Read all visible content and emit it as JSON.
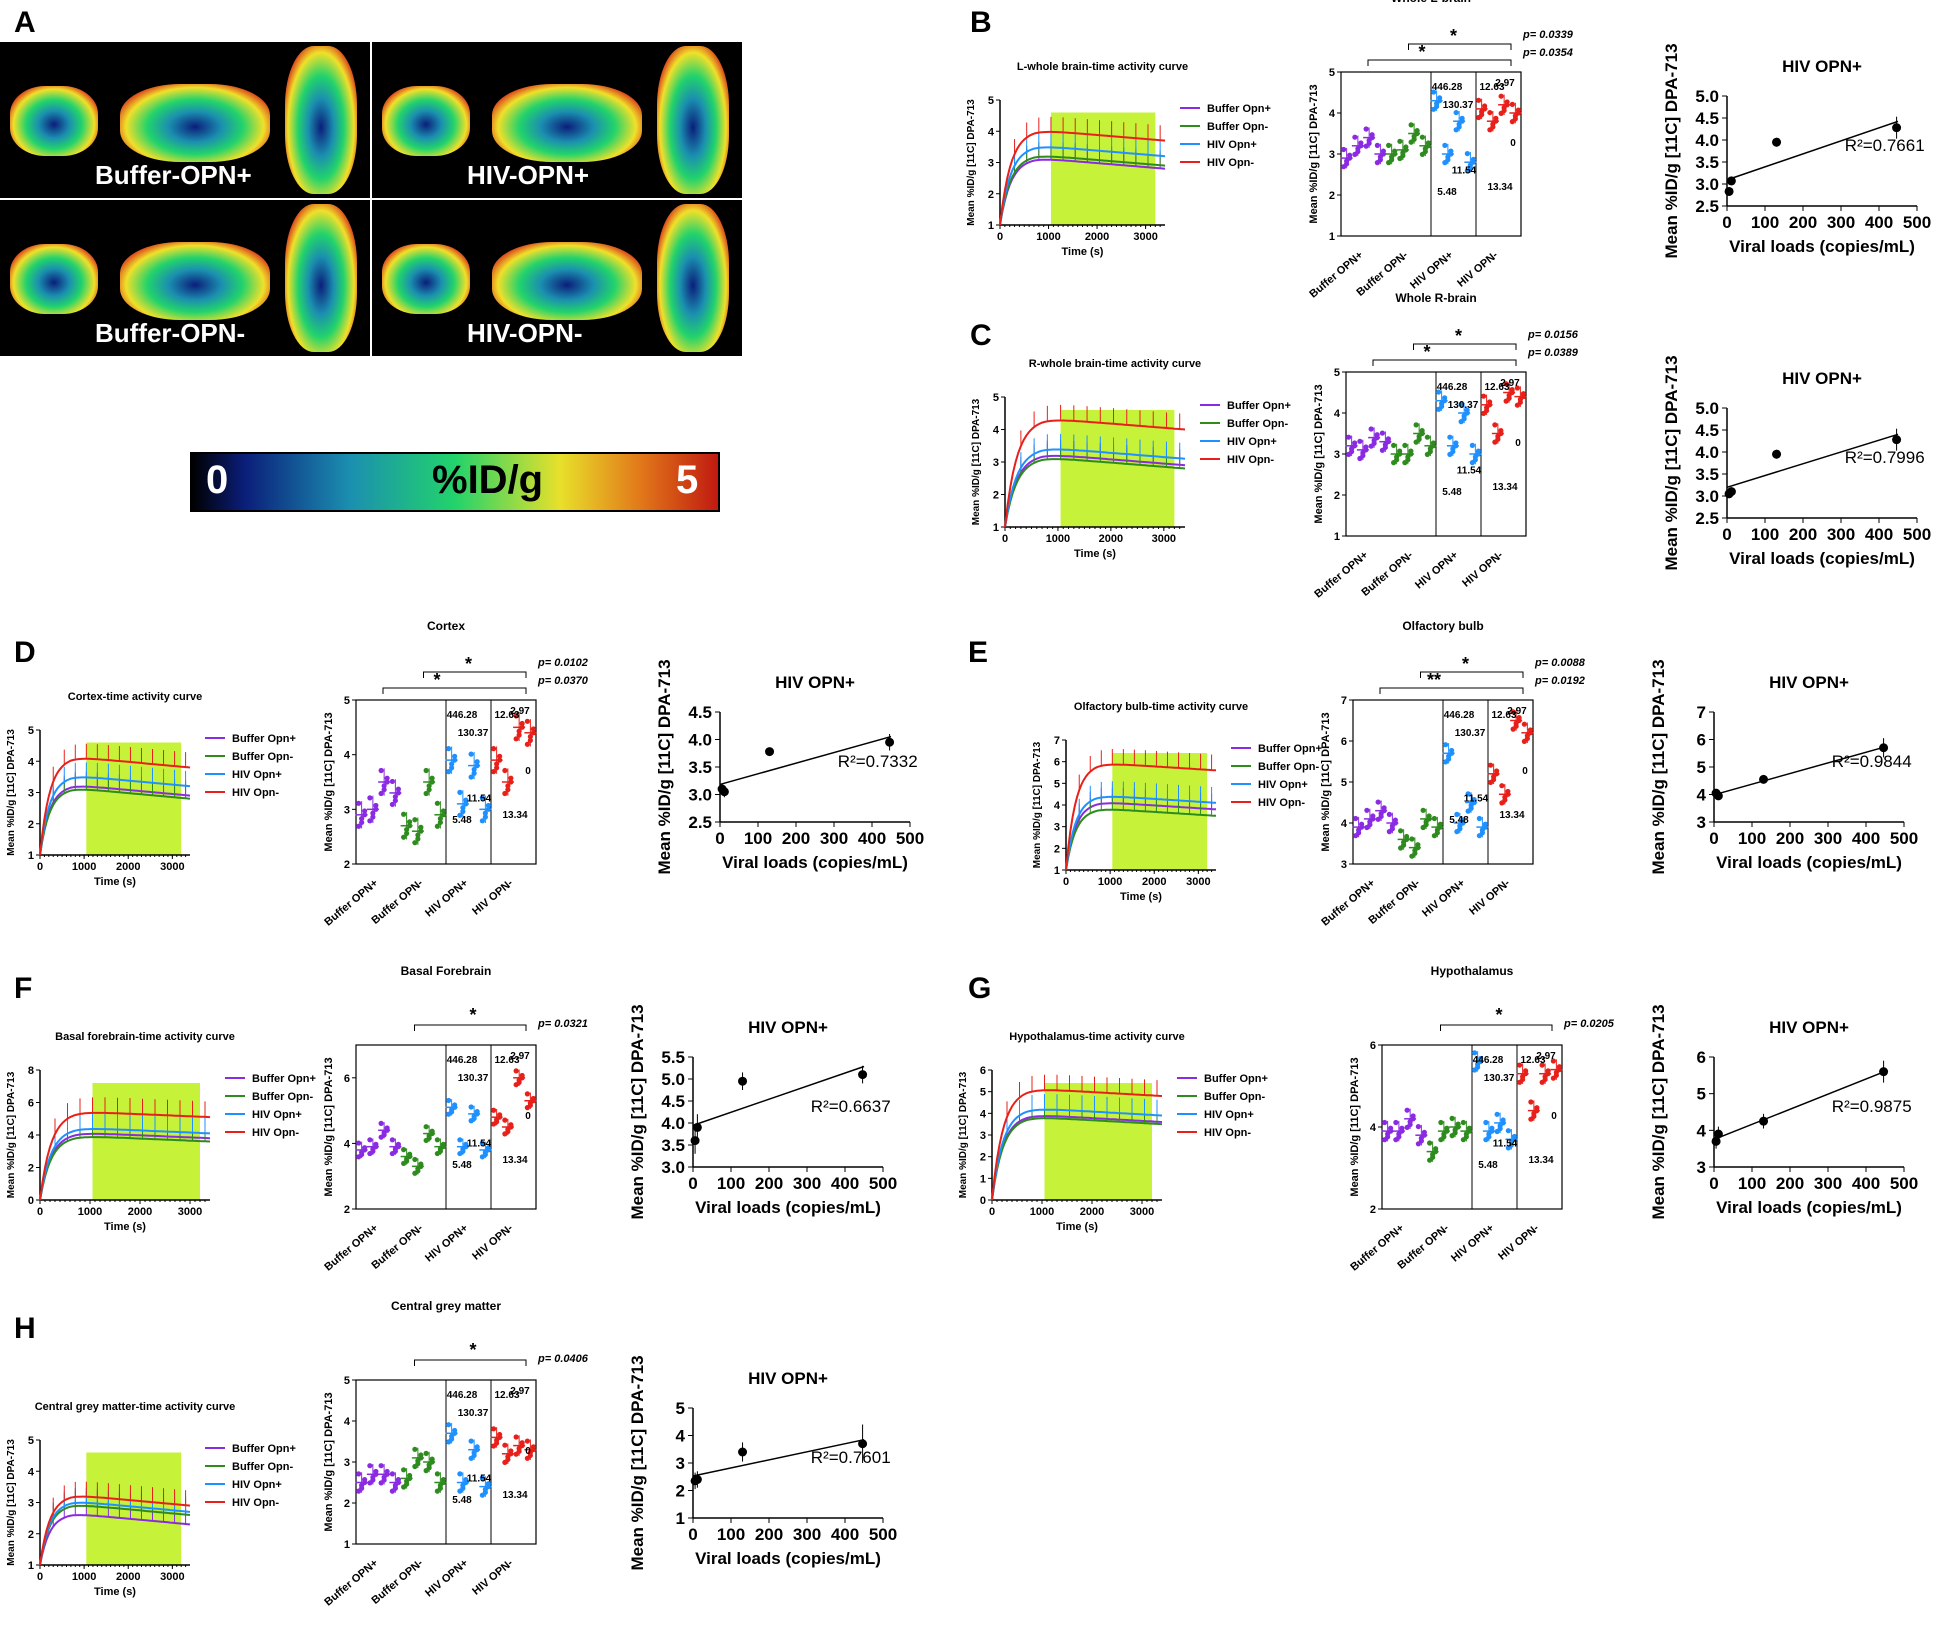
{
  "panel_letters": [
    "A",
    "B",
    "C",
    "D",
    "E",
    "F",
    "G",
    "H"
  ],
  "petscan": {
    "groups": [
      "Buffer-OPN+",
      "HIV-OPN+",
      "Buffer-OPN-",
      "HIV-OPN-"
    ],
    "colorbar": {
      "min_label": "0",
      "unit": "%ID/g",
      "max_label": "5"
    },
    "colors": {
      "low": "#0b1e7a",
      "mid": "#22d36b",
      "high": "#d62a1a"
    }
  },
  "legend_labels": [
    "Buffer Opn+",
    "Buffer Opn-",
    "HIV Opn+",
    "HIV Opn-"
  ],
  "group_labels": [
    "Buffer OPN+",
    "Buffer OPN-",
    "HIV OPN+",
    "HIV OPN-"
  ],
  "series_colors": {
    "Buffer Opn+": "#8a2be2",
    "Buffer Opn-": "#2e8b1e",
    "HIV Opn+": "#1e90ff",
    "HIV Opn-": "#e8201a",
    "highlight": "#c7f23a"
  },
  "ylabel_tac": "Mean %ID/g [11C] DPA-713",
  "ylabel_scatter": "Mean %ID/g [11C] DPA-713",
  "ylabel_reg": "Mean %ID/g [11C] DPA-713",
  "xlabel_tac": "Time (s)",
  "xlabel_reg": "Viral loads (copies/mL)",
  "reg_title": "HIV OPN+",
  "viral_loads_hiv_opn_plus": [
    "446.28",
    "130.37",
    "11.54",
    "5.48"
  ],
  "viral_loads_hiv_opn_minus": [
    "12.63",
    "2.97",
    "0",
    "13.34"
  ],
  "chart_data": [
    {
      "panel": "B",
      "region": "Whole L-brain",
      "tac_title": "L-whole brain-time activity curve",
      "tac": {
        "type": "line",
        "x_ticks": [
          0,
          1000,
          2000,
          3000
        ],
        "ylim": [
          1,
          5
        ],
        "y_ticks": [
          1,
          2,
          3,
          4,
          5
        ],
        "series": [
          {
            "name": "Buffer Opn+",
            "plateau": 2.9
          },
          {
            "name": "Buffer Opn-",
            "plateau": 3.0
          },
          {
            "name": "HIV Opn+",
            "plateau": 3.3
          },
          {
            "name": "HIV Opn-",
            "plateau": 3.8
          }
        ]
      },
      "scatter": {
        "type": "scatter",
        "ylim": [
          1,
          5
        ],
        "y_ticks": [
          1,
          2,
          3,
          4,
          5
        ],
        "means": [
          [
            2.9,
            3.2,
            3.4,
            3.0
          ],
          [
            3.0,
            3.1,
            3.5,
            3.2
          ],
          [
            4.3,
            3.0,
            3.8,
            2.8
          ],
          [
            4.1,
            3.8,
            4.2,
            4.0
          ]
        ],
        "stars": [
          "*",
          "*"
        ],
        "p_values": [
          "p= 0.0339",
          "p= 0.0354"
        ]
      },
      "regression": {
        "type": "scatter",
        "x": [
          446.28,
          130.37,
          11.54,
          5.48
        ],
        "y": [
          4.28,
          3.95,
          3.07,
          2.83
        ],
        "err": [
          0.25,
          0.1,
          0.1,
          0.1
        ],
        "xlim": [
          0,
          500
        ],
        "ylim": [
          2.5,
          5.0
        ],
        "y_ticks": [
          2.5,
          3.0,
          3.5,
          4.0,
          4.5,
          5.0
        ],
        "r2": "R²=0.7661"
      }
    },
    {
      "panel": "C",
      "region": "Whole R-brain",
      "tac_title": "R-whole brain-time activity curve",
      "tac": {
        "type": "line",
        "x_ticks": [
          0,
          1000,
          2000,
          3000
        ],
        "ylim": [
          1,
          5
        ],
        "y_ticks": [
          1,
          2,
          3,
          4,
          5
        ],
        "series": [
          {
            "name": "Buffer Opn+",
            "plateau": 3.0
          },
          {
            "name": "Buffer Opn-",
            "plateau": 2.9
          },
          {
            "name": "HIV Opn+",
            "plateau": 3.2
          },
          {
            "name": "HIV Opn-",
            "plateau": 4.1
          }
        ]
      },
      "scatter": {
        "type": "scatter",
        "ylim": [
          1,
          5
        ],
        "y_ticks": [
          1,
          2,
          3,
          4,
          5
        ],
        "means": [
          [
            3.2,
            3.1,
            3.4,
            3.3
          ],
          [
            3.0,
            3.0,
            3.5,
            3.2
          ],
          [
            4.3,
            3.2,
            4.0,
            3.0
          ],
          [
            4.2,
            3.5,
            4.5,
            4.4
          ]
        ],
        "stars": [
          "*",
          "*"
        ],
        "p_values": [
          "p= 0.0156",
          "p= 0.0389"
        ]
      },
      "regression": {
        "type": "scatter",
        "x": [
          446.28,
          130.37,
          11.54,
          5.48
        ],
        "y": [
          4.28,
          3.95,
          3.1,
          3.05
        ],
        "err": [
          0.25,
          0.1,
          0.1,
          0.1
        ],
        "xlim": [
          0,
          500
        ],
        "ylim": [
          2.5,
          5.0
        ],
        "y_ticks": [
          2.5,
          3.0,
          3.5,
          4.0,
          4.5,
          5.0
        ],
        "r2": "R²=0.7996"
      }
    },
    {
      "panel": "D",
      "region": "Cortex",
      "tac_title": "Cortex-time activity curve",
      "tac": {
        "type": "line",
        "x_ticks": [
          0,
          1000,
          2000,
          3000
        ],
        "ylim": [
          1,
          5
        ],
        "y_ticks": [
          1,
          2,
          3,
          4,
          5
        ],
        "series": [
          {
            "name": "Buffer Opn+",
            "plateau": 3.0
          },
          {
            "name": "Buffer Opn-",
            "plateau": 2.9
          },
          {
            "name": "HIV Opn+",
            "plateau": 3.3
          },
          {
            "name": "HIV Opn-",
            "plateau": 3.9
          }
        ]
      },
      "scatter": {
        "type": "scatter",
        "ylim": [
          2,
          5
        ],
        "y_ticks": [
          2,
          3,
          4,
          5
        ],
        "means": [
          [
            2.9,
            3.0,
            3.5,
            3.3
          ],
          [
            2.7,
            2.6,
            3.5,
            2.9
          ],
          [
            3.9,
            3.1,
            3.8,
            3.0
          ],
          [
            3.9,
            3.5,
            4.5,
            4.4
          ]
        ],
        "stars": [
          "*",
          "*"
        ],
        "p_values": [
          "p= 0.0102",
          "p= 0.0370"
        ]
      },
      "regression": {
        "type": "scatter",
        "x": [
          446.28,
          130.37,
          11.54,
          5.48
        ],
        "y": [
          3.95,
          3.78,
          3.05,
          3.1
        ],
        "err": [
          0.15,
          0.05,
          0.1,
          0.1
        ],
        "xlim": [
          0,
          500
        ],
        "ylim": [
          2.5,
          4.5
        ],
        "y_ticks": [
          2.5,
          3.0,
          3.5,
          4.0,
          4.5
        ],
        "r2": "R²=0.7332"
      }
    },
    {
      "panel": "E",
      "region": "Olfactory bulb",
      "tac_title": "Olfactory bulb-time activity curve",
      "tac": {
        "type": "line",
        "x_ticks": [
          0,
          1000,
          2000,
          3000
        ],
        "ylim": [
          1,
          7
        ],
        "y_ticks": [
          1,
          2,
          3,
          4,
          5,
          6,
          7
        ],
        "series": [
          {
            "name": "Buffer Opn+",
            "plateau": 3.9
          },
          {
            "name": "Buffer Opn-",
            "plateau": 3.6
          },
          {
            "name": "HIV Opn+",
            "plateau": 4.2
          },
          {
            "name": "HIV Opn-",
            "plateau": 5.7
          }
        ]
      },
      "scatter": {
        "type": "scatter",
        "ylim": [
          3,
          7
        ],
        "y_ticks": [
          3,
          4,
          5,
          6,
          7
        ],
        "means": [
          [
            3.9,
            4.1,
            4.3,
            4.0
          ],
          [
            3.6,
            3.4,
            4.1,
            3.9
          ],
          [
            5.7,
            4.0,
            4.5,
            3.9
          ],
          [
            5.2,
            4.7,
            6.5,
            6.2
          ]
        ],
        "stars": [
          "**",
          "*"
        ],
        "p_values": [
          "p= 0.0088",
          "p= 0.0192"
        ]
      },
      "regression": {
        "type": "scatter",
        "x": [
          446.28,
          130.37,
          11.54,
          5.48
        ],
        "y": [
          5.7,
          4.55,
          3.95,
          4.05
        ],
        "err": [
          0.35,
          0.1,
          0.15,
          0.15
        ],
        "xlim": [
          0,
          500
        ],
        "ylim": [
          3,
          7
        ],
        "y_ticks": [
          3,
          4,
          5,
          6,
          7
        ],
        "r2": "R²=0.9844"
      }
    },
    {
      "panel": "F",
      "region": "Basal Forebrain",
      "tac_title": "Basal forebrain-time activity curve",
      "tac": {
        "type": "line",
        "x_ticks": [
          0,
          1000,
          2000,
          3000
        ],
        "ylim": [
          0,
          8
        ],
        "y_ticks": [
          0,
          2,
          4,
          6,
          8
        ],
        "series": [
          {
            "name": "Buffer Opn+",
            "plateau": 3.9
          },
          {
            "name": "Buffer Opn-",
            "plateau": 3.7
          },
          {
            "name": "HIV Opn+",
            "plateau": 4.2
          },
          {
            "name": "HIV Opn-",
            "plateau": 5.2
          }
        ]
      },
      "scatter": {
        "type": "scatter",
        "ylim": [
          2,
          7
        ],
        "y_ticks": [
          2,
          4,
          6
        ],
        "means": [
          [
            3.8,
            3.9,
            4.4,
            3.9
          ],
          [
            3.6,
            3.3,
            4.3,
            3.9
          ],
          [
            5.1,
            3.9,
            4.9,
            3.8
          ],
          [
            4.8,
            4.5,
            6.0,
            5.3
          ]
        ],
        "stars": [
          "*"
        ],
        "p_values": [
          "p= 0.0321"
        ]
      },
      "regression": {
        "type": "scatter",
        "x": [
          446.28,
          130.37,
          11.54,
          5.48
        ],
        "y": [
          5.1,
          4.95,
          3.9,
          3.6
        ],
        "err": [
          0.2,
          0.2,
          0.3,
          0.3
        ],
        "xlim": [
          0,
          500
        ],
        "ylim": [
          3.0,
          5.5
        ],
        "y_ticks": [
          3.0,
          3.5,
          4.0,
          4.5,
          5.0,
          5.5
        ],
        "r2": "R²=0.6637"
      }
    },
    {
      "panel": "G",
      "region": "Hypothalamus",
      "tac_title": "Hypothalamus-time activity curve",
      "tac": {
        "type": "line",
        "x_ticks": [
          0,
          1000,
          2000,
          3000
        ],
        "ylim": [
          0,
          6
        ],
        "y_ticks": [
          0,
          1,
          2,
          3,
          4,
          5,
          6
        ],
        "series": [
          {
            "name": "Buffer Opn+",
            "plateau": 3.7
          },
          {
            "name": "Buffer Opn-",
            "plateau": 3.6
          },
          {
            "name": "HIV Opn+",
            "plateau": 4.0
          },
          {
            "name": "HIV Opn-",
            "plateau": 4.9
          }
        ]
      },
      "scatter": {
        "type": "scatter",
        "ylim": [
          2,
          6
        ],
        "y_ticks": [
          2,
          4,
          6
        ],
        "means": [
          [
            3.9,
            3.9,
            4.2,
            3.8
          ],
          [
            3.4,
            3.9,
            4.0,
            3.9
          ],
          [
            5.6,
            3.9,
            4.1,
            3.7
          ],
          [
            5.3,
            4.4,
            5.3,
            5.4
          ]
        ],
        "stars": [
          "*"
        ],
        "p_values": [
          "p= 0.0205"
        ]
      },
      "regression": {
        "type": "scatter",
        "x": [
          446.28,
          130.37,
          11.54,
          5.48
        ],
        "y": [
          5.6,
          4.25,
          3.9,
          3.7
        ],
        "err": [
          0.3,
          0.2,
          0.2,
          0.2
        ],
        "xlim": [
          0,
          500
        ],
        "ylim": [
          3,
          6
        ],
        "y_ticks": [
          3,
          4,
          5,
          6
        ],
        "r2": "R²=0.9875"
      }
    },
    {
      "panel": "H",
      "region": "Central grey matter",
      "tac_title": "Central grey matter-time activity curve",
      "tac": {
        "type": "line",
        "x_ticks": [
          0,
          1000,
          2000,
          3000
        ],
        "ylim": [
          1,
          5
        ],
        "y_ticks": [
          1,
          2,
          3,
          4,
          5
        ],
        "series": [
          {
            "name": "Buffer Opn+",
            "plateau": 2.4
          },
          {
            "name": "Buffer Opn-",
            "plateau": 2.7
          },
          {
            "name": "HIV Opn+",
            "plateau": 2.8
          },
          {
            "name": "HIV Opn-",
            "plateau": 3.0
          }
        ]
      },
      "scatter": {
        "type": "scatter",
        "ylim": [
          1,
          5
        ],
        "y_ticks": [
          1,
          2,
          3,
          4,
          5
        ],
        "means": [
          [
            2.5,
            2.7,
            2.7,
            2.5
          ],
          [
            2.6,
            3.1,
            3.0,
            2.5
          ],
          [
            3.7,
            2.5,
            3.3,
            2.4
          ],
          [
            3.6,
            3.2,
            3.4,
            3.3
          ]
        ],
        "stars": [
          "*"
        ],
        "p_values": [
          "p= 0.0406"
        ]
      },
      "regression": {
        "type": "scatter",
        "x": [
          446.28,
          130.37,
          11.54,
          5.48
        ],
        "y": [
          3.7,
          3.4,
          2.4,
          2.35
        ],
        "err": [
          0.7,
          0.35,
          0.3,
          0.3
        ],
        "xlim": [
          0,
          500
        ],
        "ylim": [
          1,
          5
        ],
        "y_ticks": [
          1,
          2,
          3,
          4,
          5
        ],
        "r2": "R²=0.7601"
      }
    }
  ]
}
